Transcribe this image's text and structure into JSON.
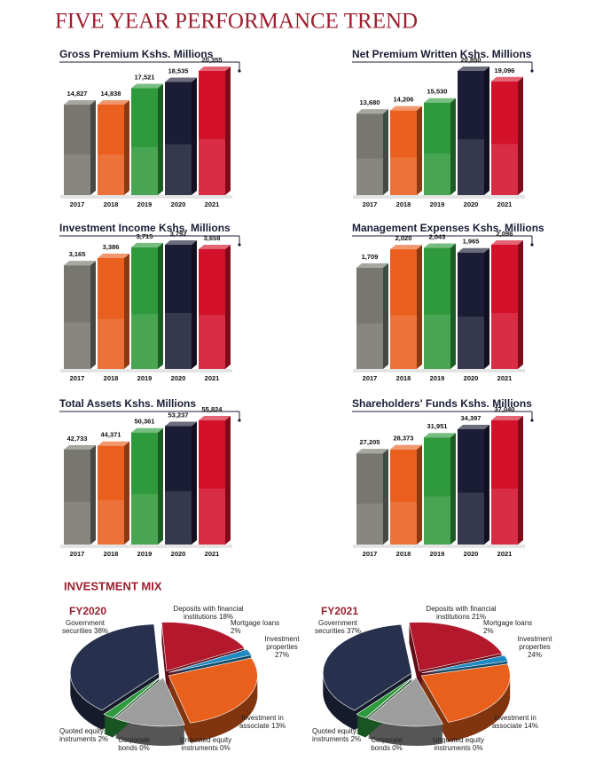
{
  "page_title": "FIVE YEAR PERFORMANCE TREND",
  "mix_title": "INVESTMENT MIX",
  "chart_data": [
    {
      "type": "bar",
      "title": "Gross Premium Kshs. Millions",
      "categories": [
        "2017",
        "2018",
        "2019",
        "2020",
        "2021"
      ],
      "values": [
        14827,
        14838,
        17521,
        18535,
        20355
      ],
      "value_labels": [
        "14,827",
        "14,838",
        "17,521",
        "18,535",
        "20,355"
      ],
      "colors": [
        "#77776f",
        "#ea5f1e",
        "#2f9a3c",
        "#1b1d36",
        "#d3112b"
      ]
    },
    {
      "type": "bar",
      "title": "Net Premium Written Kshs. Millions",
      "categories": [
        "2017",
        "2018",
        "2019",
        "2020",
        "2021"
      ],
      "values": [
        13680,
        14206,
        15530,
        20850,
        19096
      ],
      "value_labels": [
        "13,680",
        "14,206",
        "15,530",
        "20,850",
        "19,096"
      ],
      "colors": [
        "#77776f",
        "#ea5f1e",
        "#2f9a3c",
        "#1b1d36",
        "#d3112b"
      ]
    },
    {
      "type": "bar",
      "title": "Investment Income Kshs. Millions",
      "categories": [
        "2017",
        "2018",
        "2019",
        "2020",
        "2021"
      ],
      "values": [
        3165,
        3386,
        3715,
        3792,
        3658
      ],
      "value_labels": [
        "3,165",
        "3,386",
        "3,715",
        "3,792",
        "3,658"
      ],
      "colors": [
        "#77776f",
        "#ea5f1e",
        "#2f9a3c",
        "#1b1d36",
        "#d3112b"
      ]
    },
    {
      "type": "bar",
      "title": "Management Expenses Kshs. Millions",
      "categories": [
        "2017",
        "2018",
        "2019",
        "2020",
        "2021"
      ],
      "values": [
        1709,
        2020,
        2043,
        1965,
        2096
      ],
      "value_labels": [
        "1,709",
        "2,020",
        "2,043",
        "1,965",
        "2,096"
      ],
      "colors": [
        "#77776f",
        "#ea5f1e",
        "#2f9a3c",
        "#1b1d36",
        "#d3112b"
      ]
    },
    {
      "type": "bar",
      "title": "Total Assets Kshs. Millions",
      "categories": [
        "2017",
        "2018",
        "2019",
        "2020",
        "2021"
      ],
      "values": [
        42733,
        44371,
        50361,
        53237,
        55824
      ],
      "value_labels": [
        "42,733",
        "44,371",
        "50,361",
        "53,237",
        "55,824"
      ],
      "colors": [
        "#77776f",
        "#ea5f1e",
        "#2f9a3c",
        "#1b1d36",
        "#d3112b"
      ]
    },
    {
      "type": "bar",
      "title": "Shareholders' Funds Kshs. Millions",
      "categories": [
        "2017",
        "2018",
        "2019",
        "2020",
        "2021"
      ],
      "values": [
        27205,
        28373,
        31951,
        34397,
        37040
      ],
      "value_labels": [
        "27,205",
        "28,373",
        "31,951",
        "34,397",
        "37,040"
      ],
      "colors": [
        "#77776f",
        "#ea5f1e",
        "#2f9a3c",
        "#1b1d36",
        "#d3112b"
      ]
    },
    {
      "type": "pie",
      "title": "FY2020",
      "labels": [
        "Government securities 38%",
        "Deposits with financial institutions 18%",
        "Mortgage loans 2%",
        "Investment properties 27%",
        "Investment in associate 13%",
        "Unquoted equity instruments 0%",
        "Corporate bonds 0%",
        "Quoted equity instruments 2%"
      ],
      "values": [
        38,
        18,
        2,
        27,
        13,
        0,
        0,
        2
      ],
      "colors": [
        "#27314d",
        "#b3182c",
        "#1f8ac2",
        "#e8601c",
        "#9d9d9d",
        "#e2a11f",
        "#8cb03a",
        "#2e9a3e"
      ]
    },
    {
      "type": "pie",
      "title": "FY2021",
      "labels": [
        "Government securities 37%",
        "Deposits with financial institutions 21%",
        "Mortgage loans 2%",
        "Investment properties 24%",
        "Investment in associate 14%",
        "Unquoted equity instruments 0%",
        "Corporate bonds 0%",
        "Quoted equity instruments 2%"
      ],
      "values": [
        37,
        21,
        2,
        24,
        14,
        0,
        0,
        2
      ],
      "colors": [
        "#27314d",
        "#b3182c",
        "#1f8ac2",
        "#e8601c",
        "#9d9d9d",
        "#e2a11f",
        "#8cb03a",
        "#2e9a3e"
      ]
    }
  ]
}
